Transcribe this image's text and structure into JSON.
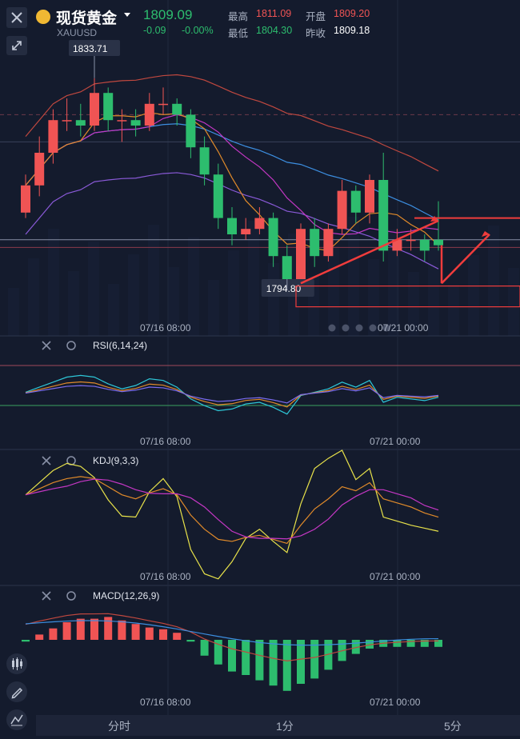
{
  "header": {
    "title": "现货黄金",
    "symbol": "XAUUSD",
    "price": "1809.09",
    "change": "-0.09",
    "change_pct": "-0.00%",
    "stats": [
      {
        "label": "最高",
        "value": "1811.09",
        "color": "#f05454"
      },
      {
        "label": "开盘",
        "value": "1809.20",
        "color": "#f05454"
      },
      {
        "label": "最低",
        "value": "1804.30",
        "color": "#2dbd6e"
      },
      {
        "label": "昨收",
        "value": "1809.18",
        "color": "#ffffff"
      }
    ]
  },
  "main_chart": {
    "high_label": "1833.71",
    "low_label": "1794.80",
    "time_labels": [
      "07/16 08:00",
      "07/21 00:00"
    ]
  },
  "rsi": {
    "label": "RSI(6,14,24)",
    "time_labels": [
      "07/16 08:00",
      "07/21 00:00"
    ]
  },
  "kdj": {
    "label": "KDJ(9,3,3)",
    "time_labels": [
      "07/16 08:00",
      "07/21 00:00"
    ]
  },
  "macd": {
    "label": "MACD(12,26,9)",
    "time_labels": [
      "07/16 08:00",
      "07/21 00:00"
    ]
  },
  "tabs": [
    "分时",
    "1分",
    "5分"
  ],
  "colors": {
    "up": "#f05454",
    "down": "#2dbd6e",
    "bg": "#141b2d",
    "annotation": "#f03c3c"
  },
  "chart_data": {
    "type": "candlestick",
    "candles": [
      {
        "o": 1809,
        "c": 1814,
        "h": 1816,
        "l": 1808
      },
      {
        "o": 1814,
        "c": 1820,
        "h": 1823,
        "l": 1812
      },
      {
        "o": 1820,
        "c": 1826,
        "h": 1828,
        "l": 1818
      },
      {
        "o": 1826,
        "c": 1826,
        "h": 1830,
        "l": 1824
      },
      {
        "o": 1826,
        "c": 1825,
        "h": 1829,
        "l": 1823
      },
      {
        "o": 1825,
        "c": 1831,
        "h": 1833.71,
        "l": 1824
      },
      {
        "o": 1831,
        "c": 1826,
        "h": 1832,
        "l": 1824
      },
      {
        "o": 1826,
        "c": 1826,
        "h": 1828,
        "l": 1822
      },
      {
        "o": 1826,
        "c": 1825,
        "h": 1828,
        "l": 1823
      },
      {
        "o": 1825,
        "c": 1829,
        "h": 1831,
        "l": 1824
      },
      {
        "o": 1829,
        "c": 1829,
        "h": 1832,
        "l": 1827
      },
      {
        "o": 1829,
        "c": 1827,
        "h": 1830,
        "l": 1825
      },
      {
        "o": 1827,
        "c": 1821,
        "h": 1828,
        "l": 1819
      },
      {
        "o": 1821,
        "c": 1816,
        "h": 1823,
        "l": 1814
      },
      {
        "o": 1816,
        "c": 1808,
        "h": 1818,
        "l": 1806
      },
      {
        "o": 1808,
        "c": 1805,
        "h": 1810,
        "l": 1803
      },
      {
        "o": 1805,
        "c": 1806,
        "h": 1808,
        "l": 1804
      },
      {
        "o": 1806,
        "c": 1808,
        "h": 1810,
        "l": 1805
      },
      {
        "o": 1808,
        "c": 1801,
        "h": 1809,
        "l": 1799
      },
      {
        "o": 1801,
        "c": 1796,
        "h": 1803,
        "l": 1794.8
      },
      {
        "o": 1796,
        "c": 1806,
        "h": 1807,
        "l": 1795
      },
      {
        "o": 1806,
        "c": 1801,
        "h": 1808,
        "l": 1799
      },
      {
        "o": 1801,
        "c": 1806,
        "h": 1807,
        "l": 1800
      },
      {
        "o": 1806,
        "c": 1813,
        "h": 1815,
        "l": 1805
      },
      {
        "o": 1813,
        "c": 1809,
        "h": 1814,
        "l": 1807
      },
      {
        "o": 1809,
        "c": 1815,
        "h": 1816,
        "l": 1807
      },
      {
        "o": 1815,
        "c": 1802,
        "h": 1820,
        "l": 1800
      },
      {
        "o": 1802,
        "c": 1804,
        "h": 1806,
        "l": 1801
      },
      {
        "o": 1804,
        "c": 1804,
        "h": 1806,
        "l": 1802
      },
      {
        "o": 1804,
        "c": 1802,
        "h": 1805,
        "l": 1800
      },
      {
        "o": 1804,
        "c": 1803,
        "h": 1811.09,
        "l": 1802
      }
    ],
    "ylim": [
      1790,
      1840
    ],
    "macd_hist": [
      -0.2,
      0.6,
      1.3,
      2.0,
      2.4,
      2.4,
      2.6,
      2.2,
      1.8,
      1.4,
      1.2,
      0.8,
      -0.2,
      -1.8,
      -2.8,
      -3.6,
      -4.0,
      -4.6,
      -5.2,
      -5.8,
      -5.0,
      -4.4,
      -3.4,
      -2.4,
      -1.6,
      -1.0,
      -0.8,
      -0.8,
      -0.8,
      -0.8,
      -0.8
    ]
  }
}
